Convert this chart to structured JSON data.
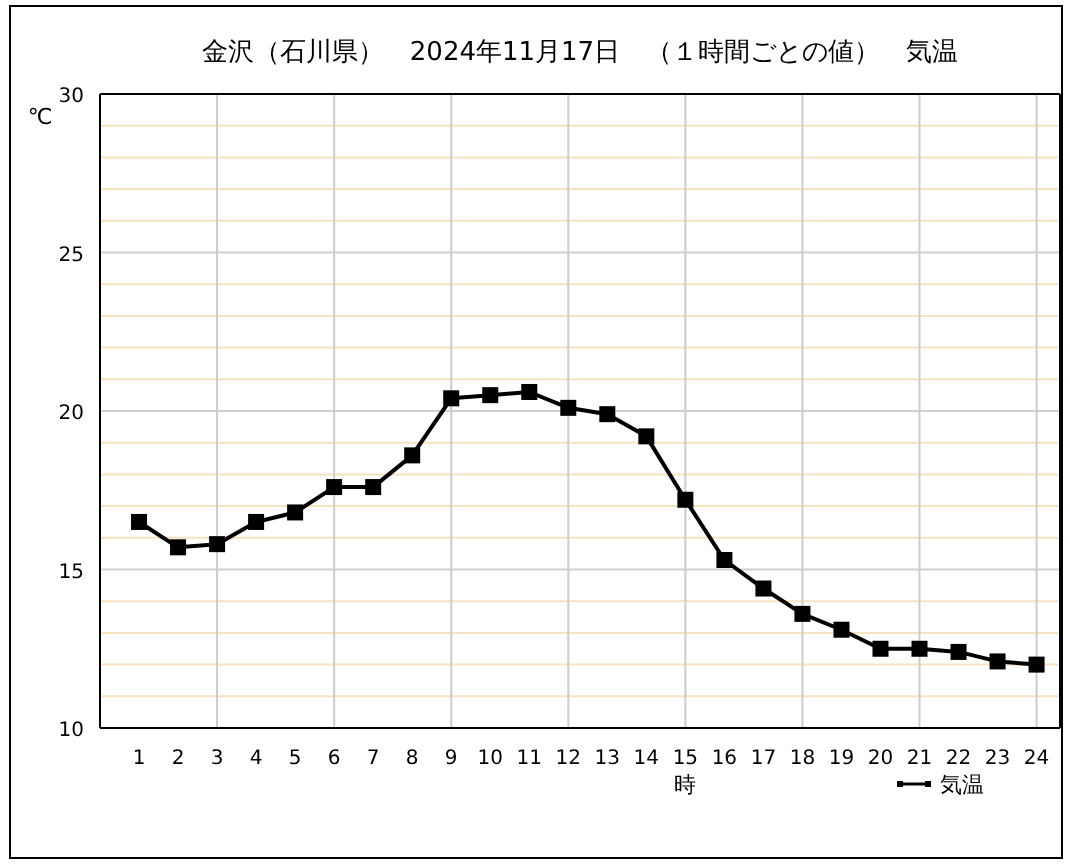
{
  "chart_data": {
    "type": "line",
    "title": "金沢（石川県）　2024年11月17日　（１時間ごとの値）　気温",
    "xlabel": "時",
    "ylabel": "℃",
    "x": [
      1,
      2,
      3,
      4,
      5,
      6,
      7,
      8,
      9,
      10,
      11,
      12,
      13,
      14,
      15,
      16,
      17,
      18,
      19,
      20,
      21,
      22,
      23,
      24
    ],
    "series": [
      {
        "name": "気温",
        "color": "#000000",
        "values": [
          16.5,
          15.7,
          15.8,
          16.5,
          16.8,
          17.6,
          17.6,
          18.6,
          20.4,
          20.5,
          20.6,
          20.1,
          19.9,
          19.2,
          17.2,
          15.3,
          14.4,
          13.6,
          13.1,
          12.5,
          12.5,
          12.4,
          12.1,
          12.0
        ]
      }
    ],
    "xlim": [
      0,
      24.6
    ],
    "ylim": [
      10,
      30
    ],
    "xticks": [
      1,
      2,
      3,
      4,
      5,
      6,
      7,
      8,
      9,
      10,
      11,
      12,
      13,
      14,
      15,
      16,
      17,
      18,
      19,
      20,
      21,
      22,
      23,
      24
    ],
    "yticks": [
      10,
      {
        "value": 11,
        "label": null
      },
      {
        "value": 12,
        "label": null
      },
      {
        "value": 13,
        "label": null
      },
      {
        "value": 14,
        "label": null
      },
      15,
      {
        "value": 16,
        "label": null
      },
      {
        "value": 17,
        "label": null
      },
      {
        "value": 18,
        "label": null
      },
      {
        "value": 19,
        "label": null
      },
      20,
      {
        "value": 21,
        "label": null
      },
      {
        "value": 22,
        "label": null
      },
      {
        "value": 23,
        "label": null
      },
      {
        "value": 24,
        "label": null
      },
      25,
      {
        "value": 26,
        "label": null
      },
      {
        "value": 27,
        "label": null
      },
      {
        "value": 28,
        "label": null
      },
      {
        "value": 29,
        "label": null
      },
      30
    ],
    "grid": true,
    "legend": "bottom right",
    "marker": "square",
    "line_style": "solid"
  }
}
